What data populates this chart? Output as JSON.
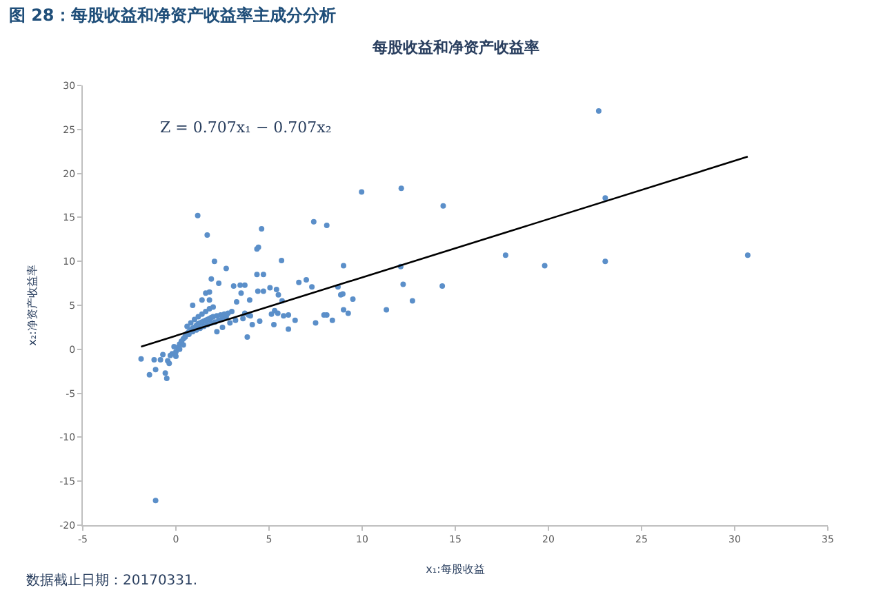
{
  "chart_data": {
    "type": "scatter",
    "title": "图 28：每股收益和净资产收益率主成分分析",
    "subtitle": "每股收益和净资产收益率",
    "xlabel": "x₁:每股收益",
    "ylabel": "x₂:净资产收益率",
    "annotations": [
      "Z = 0.707x₁ − 0.707x₂",
      "数据截止日期：20170331."
    ],
    "xlim": [
      -5,
      35
    ],
    "xticks": [
      -5,
      0,
      5,
      10,
      15,
      20,
      25,
      30,
      35
    ],
    "ylim": [
      -20,
      30
    ],
    "yticks": [
      -20,
      -15,
      -10,
      -5,
      0,
      5,
      10,
      15,
      20,
      25,
      30
    ],
    "grid": false,
    "marker": "circle",
    "series": [
      {
        "color": "#5b8fc9",
        "x": [
          1.17,
          1.68,
          4.6,
          4.43,
          4.35,
          2.07,
          2.7,
          5.67,
          7.4,
          8.1,
          9.97,
          12.1,
          14.35,
          17.7,
          9.0,
          12.07,
          12.2,
          14.3,
          12.7,
          11.3,
          9.5,
          9.0,
          9.25,
          8.85,
          8.96,
          8.7,
          8.1,
          7.95,
          8.4,
          7.5,
          7.0,
          7.3,
          6.6,
          6.04,
          6.04,
          6.4,
          5.7,
          5.78,
          5.26,
          5.3,
          5.47,
          5.13,
          5.5,
          5.4,
          5.05,
          4.35,
          4.7,
          4.4,
          4.7,
          3.83,
          4.1,
          4.5,
          3.9,
          3.7,
          3.45,
          3.7,
          3.1,
          3.5,
          3.96,
          3.26,
          1.9,
          2.3,
          1.6,
          1.8,
          0.9,
          1.4,
          1.8,
          -1.87,
          -1.17,
          -0.83,
          -0.44,
          -1.42,
          -1.09,
          -0.57,
          -0.49,
          -0.7,
          -0.3,
          -0.36,
          -1.09,
          23.05,
          19.8,
          23.05,
          30.7,
          22.7,
          0.0,
          0.1,
          0.2,
          0.3,
          0.4,
          0.5,
          0.6,
          0.7,
          0.8,
          0.9,
          1.0,
          1.1,
          1.2,
          1.3,
          1.4,
          1.5,
          1.6,
          1.7,
          1.8,
          1.9,
          2.0,
          2.2,
          2.4,
          2.6,
          2.8,
          3.0,
          0.3,
          0.5,
          0.7,
          0.9,
          1.1,
          1.3,
          1.5,
          1.7,
          1.9,
          2.1,
          2.3,
          2.5,
          2.7,
          0.6,
          0.8,
          1.0,
          1.2,
          1.4,
          1.6,
          1.8,
          2.0,
          2.2,
          2.5,
          2.9,
          3.2,
          3.6,
          4.0,
          -0.2,
          -0.1,
          0.0,
          0.2,
          0.4
        ],
        "values": [
          15.2,
          13.0,
          13.7,
          11.6,
          11.4,
          10.0,
          9.2,
          10.1,
          14.5,
          14.1,
          17.9,
          18.3,
          16.3,
          10.7,
          9.5,
          9.4,
          7.4,
          7.2,
          5.5,
          4.5,
          5.7,
          4.5,
          4.1,
          6.2,
          6.3,
          7.1,
          3.9,
          3.9,
          3.3,
          3.0,
          7.9,
          7.1,
          7.6,
          3.9,
          2.3,
          3.3,
          5.5,
          3.8,
          2.8,
          4.4,
          4.1,
          4.0,
          6.2,
          6.8,
          7.0,
          8.5,
          8.5,
          6.6,
          6.6,
          1.4,
          2.8,
          3.2,
          3.9,
          4.1,
          7.3,
          7.3,
          7.2,
          6.4,
          5.6,
          5.4,
          8.0,
          7.5,
          6.4,
          6.5,
          5.0,
          5.6,
          5.6,
          -1.1,
          -1.2,
          -1.2,
          -1.3,
          -2.9,
          -2.3,
          -2.7,
          -3.3,
          -0.6,
          -0.7,
          -1.6,
          -17.2,
          17.2,
          9.5,
          10.0,
          10.7,
          27.1,
          -0.3,
          0.2,
          0.6,
          0.9,
          1.2,
          1.5,
          1.8,
          2.0,
          2.2,
          2.4,
          2.5,
          2.7,
          2.9,
          3.0,
          3.1,
          3.2,
          3.3,
          3.4,
          3.5,
          3.6,
          3.7,
          3.8,
          3.9,
          4.0,
          4.1,
          4.3,
          0.9,
          1.4,
          1.7,
          2.0,
          2.2,
          2.4,
          2.6,
          2.8,
          3.0,
          3.1,
          3.3,
          3.5,
          3.7,
          2.6,
          3.0,
          3.4,
          3.7,
          4.0,
          4.3,
          4.6,
          4.8,
          2.0,
          2.5,
          3.0,
          3.3,
          3.5,
          3.8,
          -0.5,
          0.3,
          -0.8,
          0.0,
          0.5
        ]
      },
      {
        "type": "line",
        "color": "#000000",
        "marker": "none",
        "x": [
          -1.87,
          30.7
        ],
        "values": [
          0.3,
          21.9
        ]
      }
    ]
  }
}
